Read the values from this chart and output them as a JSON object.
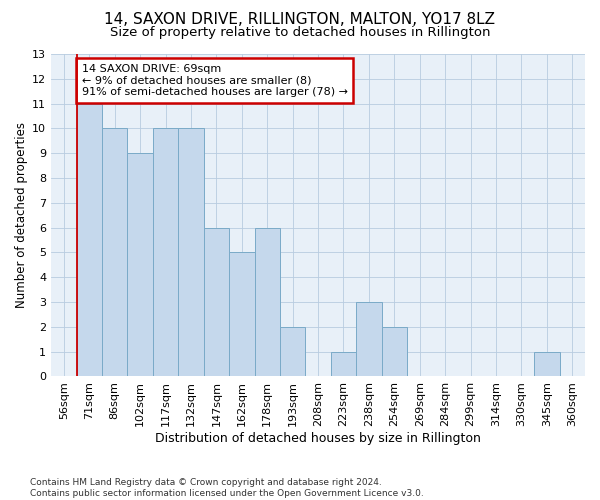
{
  "title": "14, SAXON DRIVE, RILLINGTON, MALTON, YO17 8LZ",
  "subtitle": "Size of property relative to detached houses in Rillington",
  "xlabel": "Distribution of detached houses by size in Rillington",
  "ylabel": "Number of detached properties",
  "bar_labels": [
    "56sqm",
    "71sqm",
    "86sqm",
    "102sqm",
    "117sqm",
    "132sqm",
    "147sqm",
    "162sqm",
    "178sqm",
    "193sqm",
    "208sqm",
    "223sqm",
    "238sqm",
    "254sqm",
    "269sqm",
    "284sqm",
    "299sqm",
    "314sqm",
    "330sqm",
    "345sqm",
    "360sqm"
  ],
  "bar_values": [
    0,
    11,
    10,
    9,
    10,
    10,
    6,
    5,
    6,
    2,
    0,
    1,
    3,
    2,
    0,
    0,
    0,
    0,
    0,
    1,
    0
  ],
  "bar_color": "#c5d8ec",
  "bar_edge_color": "#7aaac8",
  "plot_bg_color": "#e8f0f8",
  "annotation_text": "14 SAXON DRIVE: 69sqm\n← 9% of detached houses are smaller (8)\n91% of semi-detached houses are larger (78) →",
  "annotation_box_facecolor": "#ffffff",
  "annotation_box_edgecolor": "#cc0000",
  "red_line_color": "#cc0000",
  "ylim": [
    0,
    13
  ],
  "yticks": [
    0,
    1,
    2,
    3,
    4,
    5,
    6,
    7,
    8,
    9,
    10,
    11,
    12,
    13
  ],
  "footer_text": "Contains HM Land Registry data © Crown copyright and database right 2024.\nContains public sector information licensed under the Open Government Licence v3.0.",
  "bg_color": "#ffffff",
  "grid_color": "#b8cce0",
  "title_fontsize": 11,
  "subtitle_fontsize": 9.5,
  "ylabel_fontsize": 8.5,
  "xlabel_fontsize": 9,
  "tick_fontsize": 8,
  "annotation_fontsize": 8,
  "footer_fontsize": 6.5
}
